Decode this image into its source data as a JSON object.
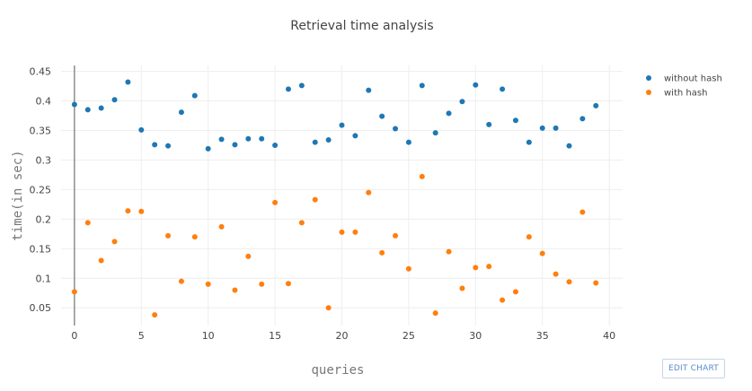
{
  "chart_data": {
    "type": "scatter",
    "title": "Retrieval time analysis",
    "xlabel": "queries",
    "ylabel": "time(in sec)",
    "xlim": [
      -1,
      41
    ],
    "ylim": [
      0.02,
      0.46
    ],
    "xticks": [
      0,
      5,
      10,
      15,
      20,
      25,
      30,
      35,
      40
    ],
    "yticks": [
      0.05,
      0.1,
      0.15,
      0.2,
      0.25,
      0.3,
      0.35,
      0.4,
      0.45
    ],
    "ytick_labels": [
      "0.05",
      "0.1",
      "0.15",
      "0.2",
      "0.25",
      "0.3",
      "0.35",
      "0.4",
      "0.45"
    ],
    "grid": true,
    "legend_position": "top-right",
    "x": [
      0,
      1,
      2,
      3,
      4,
      5,
      6,
      7,
      8,
      9,
      10,
      11,
      12,
      13,
      14,
      15,
      16,
      17,
      18,
      19,
      20,
      21,
      22,
      23,
      24,
      25,
      26,
      27,
      28,
      29,
      30,
      31,
      32,
      33,
      34,
      35,
      36,
      37,
      38,
      39
    ],
    "series": [
      {
        "name": "without hash",
        "color": "#1f77b4",
        "values": [
          0.394,
          0.385,
          0.388,
          0.402,
          0.432,
          0.351,
          0.326,
          0.324,
          0.381,
          0.409,
          0.319,
          0.335,
          0.326,
          0.336,
          0.336,
          0.325,
          0.42,
          0.426,
          0.33,
          0.334,
          0.359,
          0.341,
          0.418,
          0.374,
          0.353,
          0.33,
          0.426,
          0.346,
          0.379,
          0.399,
          0.427,
          0.36,
          0.42,
          0.367,
          0.33,
          0.354,
          0.354,
          0.324,
          0.37,
          0.392
        ]
      },
      {
        "name": "with hash",
        "color": "#ff7f0e",
        "values": [
          0.077,
          0.194,
          0.13,
          0.162,
          0.214,
          0.213,
          0.038,
          0.172,
          0.095,
          0.17,
          0.09,
          0.187,
          0.08,
          0.137,
          0.09,
          0.228,
          0.091,
          0.194,
          0.233,
          0.05,
          0.178,
          0.178,
          0.245,
          0.143,
          0.172,
          0.116,
          0.272,
          0.041,
          0.145,
          0.083,
          0.118,
          0.12,
          0.063,
          0.077,
          0.17,
          0.142,
          0.107,
          0.094,
          0.212,
          0.092
        ]
      }
    ]
  },
  "toolbar": {
    "edit_chart_label": "EDIT CHART"
  }
}
